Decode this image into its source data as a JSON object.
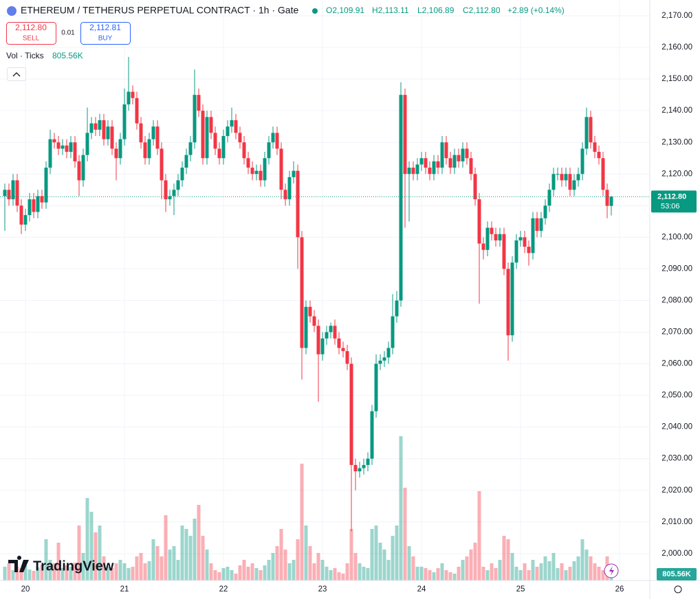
{
  "chart_data": {
    "type": "candlestick",
    "title": "ETHEREUM / TETHERUS PERPETUAL CONTRACT · 1h · Gate",
    "header": {
      "open": "O2,109.91",
      "high": "H2,113.11",
      "low": "L2,106.89",
      "close": "C2,112.80",
      "change": "+2.89 (+0.14%)"
    },
    "trade": {
      "sell_price": "2,112.80",
      "sell": "SELL",
      "spread": "0.01",
      "buy_price": "2,112.81",
      "buy": "BUY"
    },
    "volume_legend": {
      "name": "Vol · Ticks",
      "value": "805.56K"
    },
    "last_price": {
      "label": "2,112.80",
      "countdown": "53:06"
    },
    "volume_badge": "805.56K",
    "logo": "TradingView",
    "up_color": "#089981",
    "down_color": "#f23645",
    "open": [
      2113,
      2115,
      2112,
      2118,
      2110,
      2104,
      2107,
      2112,
      2108,
      2113,
      2111,
      2122,
      2131,
      2130,
      2128,
      2129,
      2127,
      2130,
      2124,
      2118,
      2126,
      2133,
      2136,
      2134,
      2137,
      2131,
      2135,
      2128,
      2125,
      2131,
      2142,
      2146,
      2144,
      2136,
      2130,
      2125,
      2131,
      2135,
      2128,
      2118,
      2112,
      2113,
      2115,
      2118,
      2122,
      2126,
      2130,
      2145,
      2140,
      2125,
      2138,
      2133,
      2128,
      2125,
      2132,
      2135,
      2137,
      2133,
      2130,
      2125,
      2122,
      2120,
      2121,
      2118,
      2125,
      2130,
      2133,
      2128,
      2115,
      2112,
      2119,
      2121,
      2100,
      2065,
      2078,
      2075,
      2072,
      2063,
      2068,
      2070,
      2072,
      2068,
      2065,
      2064,
      2060,
      2028,
      2026,
      2027,
      2028,
      2030,
      2045,
      2060,
      2061,
      2062,
      2065,
      2075,
      2080,
      2145,
      2120,
      2122,
      2120,
      2123,
      2125,
      2122,
      2120,
      2124,
      2122,
      2130,
      2125,
      2122,
      2126,
      2124,
      2128,
      2125,
      2120,
      2112,
      2098,
      2096,
      2103,
      2101,
      2099,
      2101,
      2090,
      2069,
      2092,
      2099,
      2100,
      2097,
      2095,
      2106,
      2102,
      2106,
      2110,
      2115,
      2120,
      2120,
      2118,
      2120,
      2115,
      2118,
      2120,
      2128,
      2138,
      2130,
      2127,
      2125,
      2115,
      2109.91
    ],
    "high": [
      2117,
      2117,
      2120,
      2120,
      2112,
      2109,
      2114,
      2114,
      2115,
      2115,
      2124,
      2134,
      2133,
      2132,
      2131,
      2131,
      2132,
      2132,
      2126,
      2128,
      2141,
      2138,
      2138,
      2139,
      2139,
      2137,
      2137,
      2130,
      2133,
      2147,
      2157,
      2148,
      2146,
      2138,
      2132,
      2133,
      2137,
      2137,
      2130,
      2120,
      2115,
      2117,
      2120,
      2124,
      2128,
      2132,
      2153,
      2147,
      2142,
      2140,
      2140,
      2135,
      2130,
      2134,
      2137,
      2141,
      2139,
      2135,
      2132,
      2127,
      2124,
      2123,
      2123,
      2127,
      2132,
      2135,
      2135,
      2130,
      2117,
      2121,
      2124,
      2123,
      2102,
      2080,
      2080,
      2077,
      2074,
      2070,
      2072,
      2073,
      2074,
      2070,
      2067,
      2066,
      2062,
      2030,
      2029,
      2030,
      2032,
      2047,
      2063,
      2063,
      2064,
      2067,
      2082,
      2083,
      2149,
      2147,
      2124,
      2124,
      2125,
      2127,
      2127,
      2124,
      2126,
      2126,
      2132,
      2132,
      2127,
      2128,
      2128,
      2130,
      2130,
      2127,
      2122,
      2114,
      2100,
      2105,
      2105,
      2103,
      2103,
      2103,
      2092,
      2094,
      2101,
      2102,
      2102,
      2099,
      2108,
      2108,
      2108,
      2112,
      2117,
      2122,
      2122,
      2122,
      2122,
      2122,
      2120,
      2122,
      2130,
      2141,
      2140,
      2132,
      2129,
      2127,
      2117,
      2113.11
    ],
    "low": [
      2102,
      2110,
      2110,
      2108,
      2101,
      2102,
      2105,
      2106,
      2106,
      2109,
      2109,
      2120,
      2128,
      2126,
      2126,
      2125,
      2125,
      2122,
      2113,
      2116,
      2124,
      2131,
      2132,
      2132,
      2129,
      2129,
      2126,
      2118,
      2123,
      2129,
      2140,
      2142,
      2134,
      2128,
      2123,
      2123,
      2129,
      2126,
      2112,
      2108,
      2110,
      2107,
      2113,
      2116,
      2120,
      2124,
      2128,
      2138,
      2123,
      2123,
      2131,
      2126,
      2123,
      2123,
      2130,
      2133,
      2131,
      2128,
      2123,
      2120,
      2118,
      2118,
      2116,
      2116,
      2123,
      2128,
      2126,
      2112,
      2110,
      2110,
      2117,
      2090,
      2055,
      2063,
      2073,
      2070,
      2048,
      2061,
      2066,
      2068,
      2066,
      2063,
      2062,
      2058,
      2007,
      2020,
      2024,
      2025,
      2026,
      2028,
      2043,
      2058,
      2059,
      2060,
      2063,
      2073,
      2078,
      2103,
      2105,
      2118,
      2118,
      2121,
      2120,
      2118,
      2118,
      2120,
      2120,
      2123,
      2120,
      2120,
      2122,
      2122,
      2123,
      2118,
      2110,
      2079,
      2093,
      2094,
      2099,
      2097,
      2097,
      2088,
      2061,
      2067,
      2090,
      2097,
      2095,
      2091,
      2093,
      2100,
      2100,
      2104,
      2108,
      2113,
      2118,
      2116,
      2116,
      2113,
      2113,
      2116,
      2118,
      2126,
      2128,
      2125,
      2123,
      2113,
      2106,
      2106.89
    ],
    "close": [
      2115,
      2112,
      2118,
      2110,
      2104,
      2107,
      2112,
      2108,
      2113,
      2111,
      2122,
      2131,
      2130,
      2128,
      2129,
      2127,
      2130,
      2124,
      2118,
      2126,
      2133,
      2136,
      2134,
      2137,
      2131,
      2135,
      2128,
      2125,
      2131,
      2142,
      2146,
      2144,
      2136,
      2130,
      2125,
      2131,
      2135,
      2128,
      2118,
      2112,
      2113,
      2115,
      2118,
      2122,
      2126,
      2130,
      2145,
      2140,
      2125,
      2138,
      2133,
      2128,
      2125,
      2132,
      2135,
      2137,
      2133,
      2130,
      2125,
      2122,
      2120,
      2121,
      2118,
      2125,
      2130,
      2133,
      2128,
      2115,
      2112,
      2119,
      2121,
      2100,
      2065,
      2078,
      2075,
      2072,
      2063,
      2068,
      2070,
      2072,
      2068,
      2065,
      2064,
      2060,
      2028,
      2026,
      2027,
      2028,
      2030,
      2045,
      2060,
      2061,
      2062,
      2065,
      2075,
      2080,
      2145,
      2120,
      2122,
      2120,
      2123,
      2125,
      2122,
      2120,
      2124,
      2122,
      2130,
      2125,
      2122,
      2126,
      2124,
      2128,
      2125,
      2120,
      2112,
      2098,
      2096,
      2103,
      2101,
      2099,
      2101,
      2090,
      2069,
      2092,
      2099,
      2100,
      2097,
      2095,
      2106,
      2102,
      2106,
      2110,
      2115,
      2120,
      2120,
      2118,
      2120,
      2115,
      2118,
      2120,
      2128,
      2138,
      2130,
      2127,
      2125,
      2115,
      2109.91,
      2112.8
    ],
    "volume": [
      2000,
      2500,
      1500,
      2000,
      1800,
      2200,
      1600,
      1400,
      1900,
      2300,
      6000,
      3000,
      2500,
      5500,
      1800,
      2200,
      2000,
      2600,
      8000,
      4000,
      12000,
      10000,
      7000,
      8000,
      3500,
      2000,
      1800,
      2500,
      3000,
      2500,
      1800,
      2000,
      3500,
      4000,
      2500,
      2800,
      6000,
      5000,
      3500,
      9500,
      4500,
      5000,
      3000,
      8000,
      7500,
      6500,
      9000,
      11000,
      6500,
      4500,
      2500,
      1500,
      1200,
      1800,
      2000,
      1500,
      1000,
      2200,
      3000,
      2000,
      2500,
      1800,
      1500,
      2200,
      3000,
      4000,
      5000,
      7500,
      4500,
      2500,
      3000,
      6000,
      17000,
      8000,
      5000,
      2500,
      4000,
      3000,
      2000,
      1500,
      1800,
      1200,
      1000,
      2500,
      7500,
      4000,
      2500,
      2000,
      1800,
      7500,
      8000,
      5500,
      4500,
      3000,
      6500,
      8000,
      21000,
      13500,
      5000,
      3500,
      2000,
      2000,
      1800,
      1500,
      1200,
      1800,
      2500,
      1500,
      1200,
      1000,
      2000,
      3000,
      3500,
      4500,
      5500,
      13000,
      2000,
      1500,
      2500,
      1800,
      3000,
      6500,
      6000,
      4000,
      2000,
      1500,
      2500,
      1500,
      3000,
      2000,
      2500,
      3500,
      2800,
      4000,
      1800,
      2500,
      1500,
      2000,
      2800,
      3500,
      6000,
      4500,
      3500,
      2500,
      2000,
      1500,
      3500,
      805.56
    ],
    "ylim": [
      1991.5,
      2175
    ],
    "yticks": [
      {
        "value": 2000,
        "label": "2,000.00"
      },
      {
        "value": 2010,
        "label": "2,010.00"
      },
      {
        "value": 2020,
        "label": "2,020.00"
      },
      {
        "value": 2030,
        "label": "2,030.00"
      },
      {
        "value": 2040,
        "label": "2,040.00"
      },
      {
        "value": 2050,
        "label": "2,050.00"
      },
      {
        "value": 2060,
        "label": "2,060.00"
      },
      {
        "value": 2070,
        "label": "2,070.00"
      },
      {
        "value": 2080,
        "label": "2,080.00"
      },
      {
        "value": 2090,
        "label": "2,090.00"
      },
      {
        "value": 2100,
        "label": "2,100.00"
      },
      {
        "value": 2110,
        "label": "2,110.00"
      },
      {
        "value": 2120,
        "label": "2,120.00"
      },
      {
        "value": 2130,
        "label": "2,130.00"
      },
      {
        "value": 2140,
        "label": "2,140.00"
      },
      {
        "value": 2150,
        "label": "2,150.00"
      },
      {
        "value": 2160,
        "label": "2,160.00"
      },
      {
        "value": 2170,
        "label": "2,170.00"
      }
    ],
    "xticks": [
      {
        "value": 5,
        "label": "20"
      },
      {
        "value": 29,
        "label": "21"
      },
      {
        "value": 53,
        "label": "22"
      },
      {
        "value": 77,
        "label": "23"
      },
      {
        "value": 101,
        "label": "24"
      },
      {
        "value": 125,
        "label": "25"
      },
      {
        "value": 149,
        "label": "26"
      }
    ],
    "grid": true
  }
}
